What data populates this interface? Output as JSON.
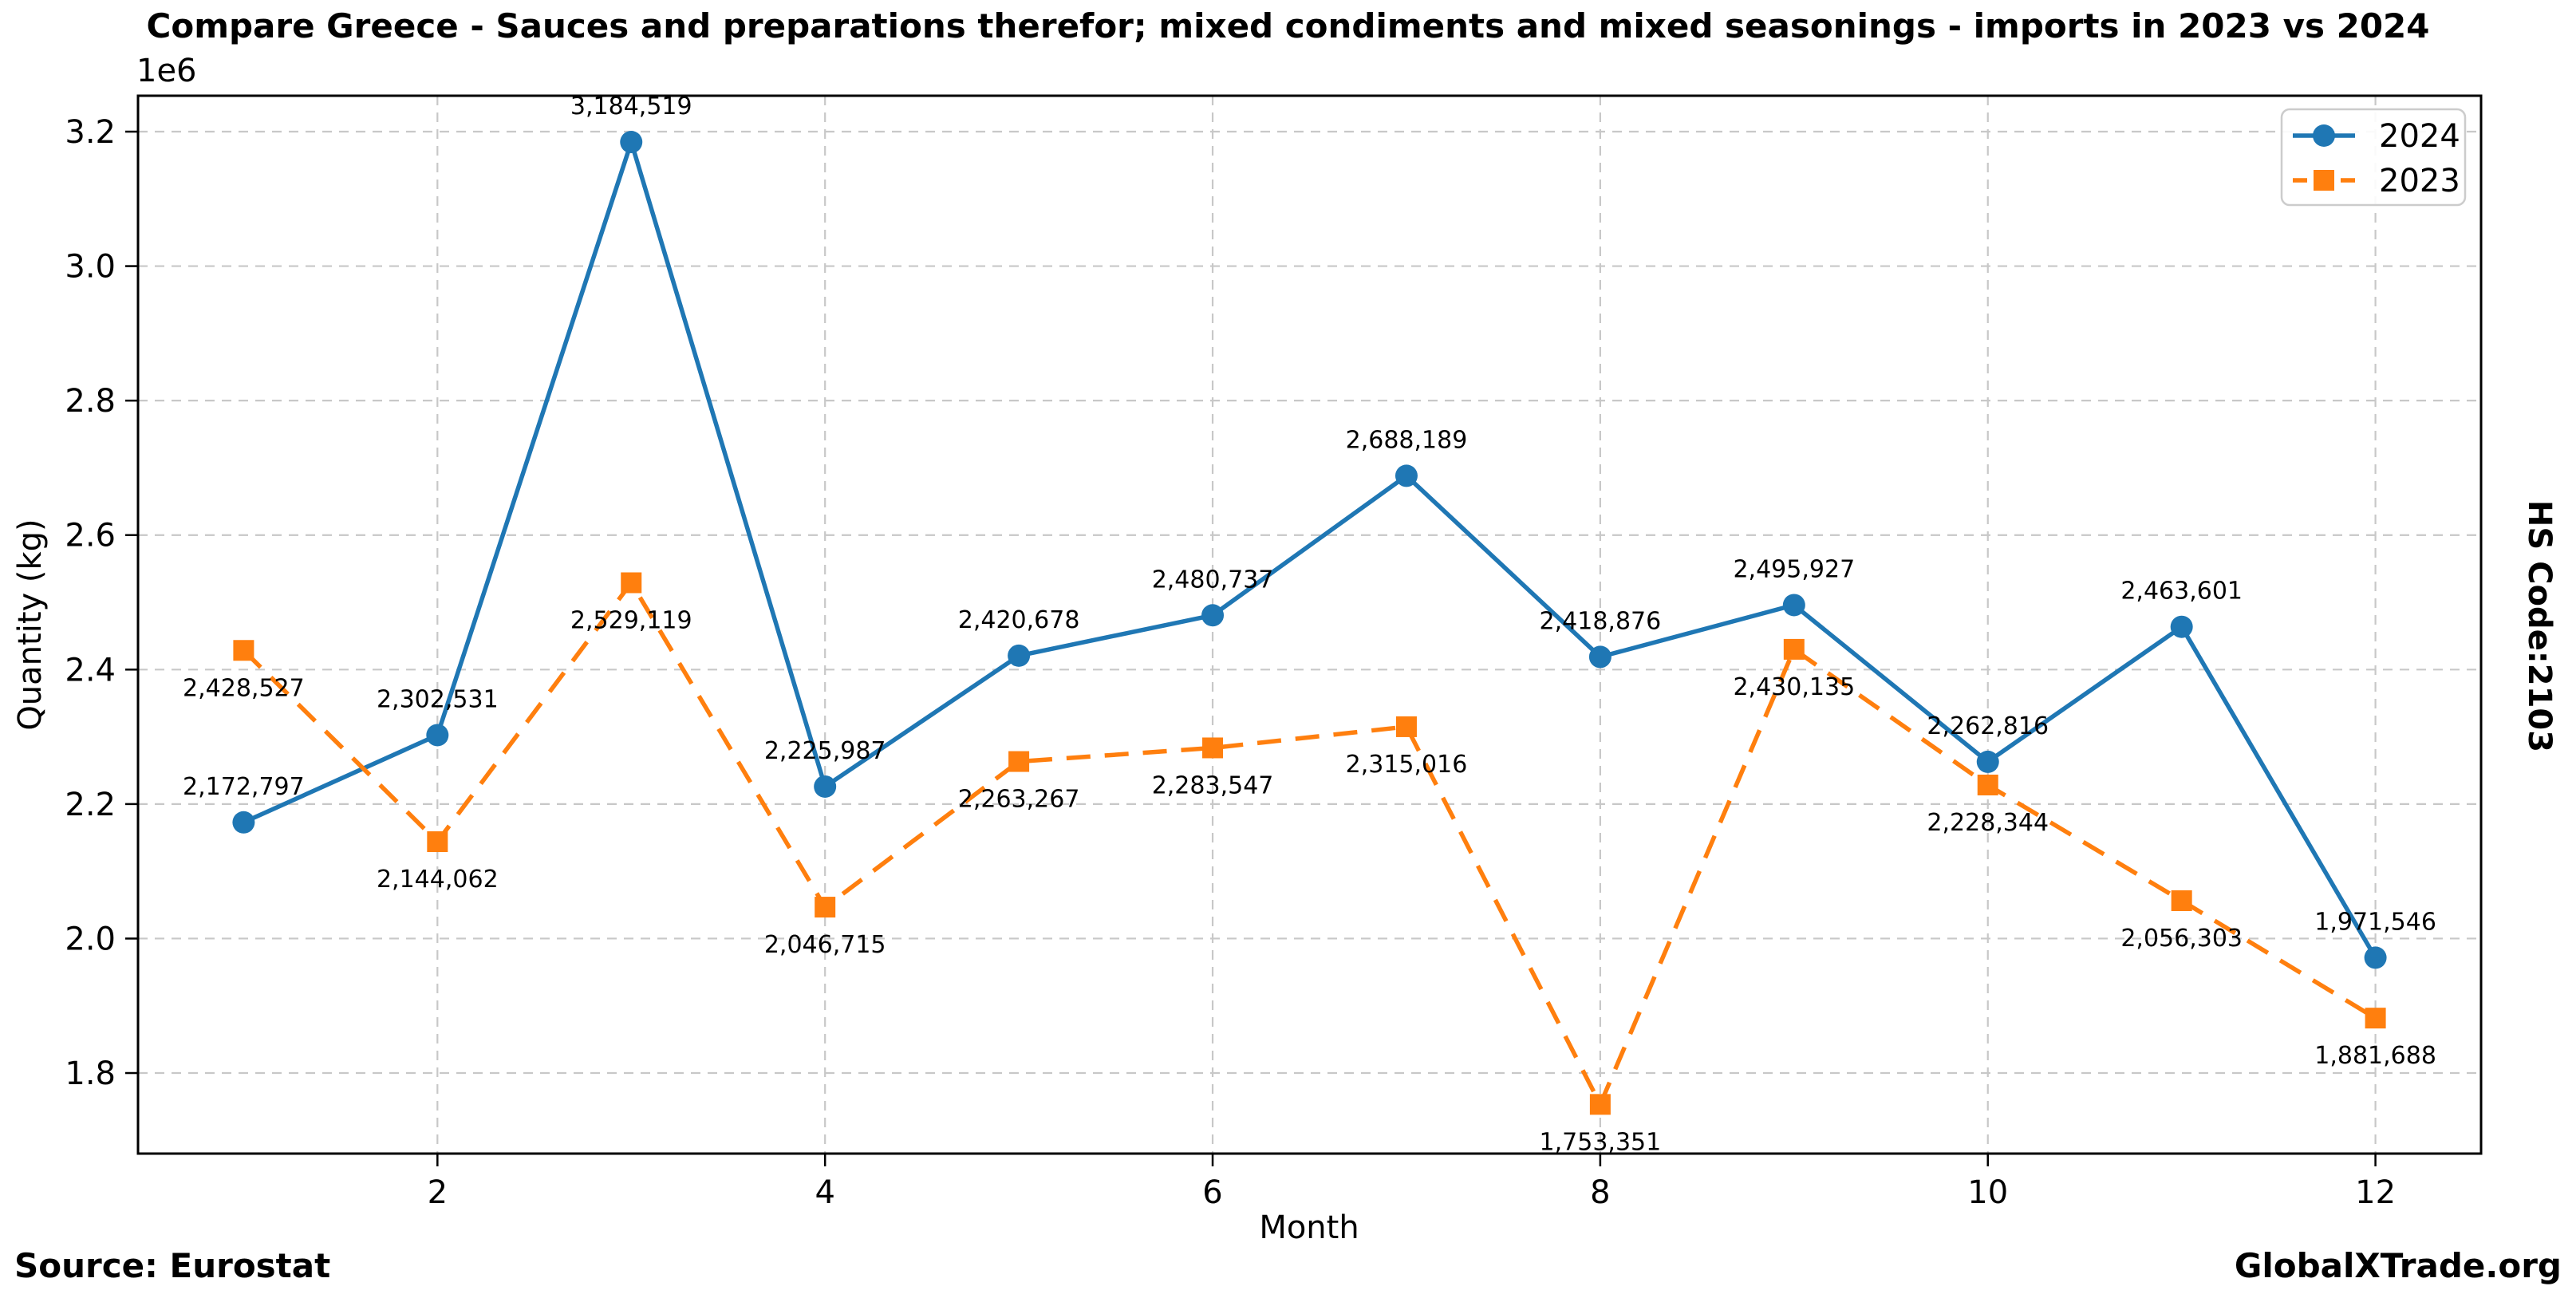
{
  "chart_data": {
    "type": "line",
    "title": "Compare Greece - Sauces and preparations therefor; mixed condiments and mixed seasonings - imports in 2023 vs 2024",
    "xlabel": "Month",
    "ylabel": "Quantity (kg)",
    "y_offset_label": "1e6",
    "x": [
      1,
      2,
      3,
      4,
      5,
      6,
      7,
      8,
      9,
      10,
      11,
      12
    ],
    "series": [
      {
        "name": "2024",
        "color": "#1f77b4",
        "style": "solid",
        "marker": "circle",
        "label_position": "above",
        "values": [
          2172797,
          2302531,
          3184519,
          2225987,
          2420678,
          2480737,
          2688189,
          2418876,
          2495927,
          2262816,
          2463601,
          1971546
        ]
      },
      {
        "name": "2023",
        "color": "#ff7f0e",
        "style": "dashed",
        "marker": "square",
        "label_position": "below",
        "values": [
          2428527,
          2144062,
          2529119,
          2046715,
          2263267,
          2283547,
          2315016,
          1753351,
          2430135,
          2228344,
          2056303,
          1881688
        ]
      }
    ],
    "xticks": [
      2,
      4,
      6,
      8,
      10,
      12
    ],
    "yticks": [
      1.8,
      2.0,
      2.2,
      2.4,
      2.6,
      2.8,
      3.0,
      3.2
    ],
    "xlim": [
      0.455,
      12.545
    ],
    "ylim": [
      1680200,
      3253400
    ],
    "grid": true,
    "legend_position": "top-right",
    "grid_color": "#c8c8c8",
    "axis_color": "#000000"
  },
  "footer": {
    "source": "Source: Eurostat",
    "brand": "GlobalXTrade.org"
  },
  "side_label": "HS Code:2103"
}
